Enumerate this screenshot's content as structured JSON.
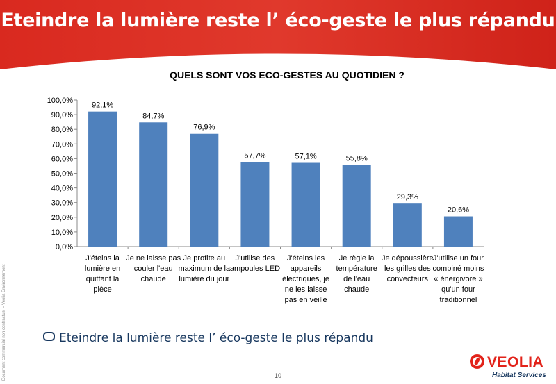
{
  "header": {
    "title": "Eteindre la lumière reste l’ éco-geste le plus répandu"
  },
  "side_note": "Document commercial non contractuel – Veolia Environnement",
  "bullet": {
    "text": "Eteindre la lumière reste l’ éco-geste le plus répandu"
  },
  "footer": {
    "page_number": "10"
  },
  "logo": {
    "name": "VEOLIA",
    "subtitle": "Habitat Services"
  },
  "colors": {
    "header_red": "#d7281f",
    "bar_blue": "#4f81bd",
    "text_navy": "#17375e",
    "logo_red": "#e2231a"
  },
  "chart_data": {
    "type": "bar",
    "title": "QUELS SONT VOS ECO-GESTES AU QUOTIDIEN ?",
    "xlabel": "",
    "ylabel": "",
    "ylim": [
      0,
      100
    ],
    "y_ticks": [
      "0,0%",
      "10,0%",
      "20,0%",
      "30,0%",
      "40,0%",
      "50,0%",
      "60,0%",
      "70,0%",
      "80,0%",
      "90,0%",
      "100,0%"
    ],
    "categories": [
      [
        "J'éteins la",
        "lumière en",
        "quittant la",
        "pièce"
      ],
      [
        "Je ne laisse pas",
        "couler l'eau",
        "chaude"
      ],
      [
        "Je profite au",
        "maximum de la",
        "lumière du jour"
      ],
      [
        "J'utilise des",
        "ampoules LED"
      ],
      [
        "J'éteins les",
        "appareils",
        "électriques, je",
        "ne les laisse",
        "pas en veille"
      ],
      [
        "Je règle la",
        "température",
        "de l'eau",
        "chaude"
      ],
      [
        "Je dépoussière",
        "les grilles des",
        "convecteurs"
      ],
      [
        "J'utilise un four",
        "combiné moins",
        "« énergivore »",
        "qu'un four",
        "traditionnel"
      ]
    ],
    "values": [
      92.1,
      84.7,
      76.9,
      57.7,
      57.1,
      55.8,
      29.3,
      20.6
    ],
    "value_labels": [
      "92,1%",
      "84,7%",
      "76,9%",
      "57,7%",
      "57,1%",
      "55,8%",
      "29,3%",
      "20,6%"
    ]
  }
}
